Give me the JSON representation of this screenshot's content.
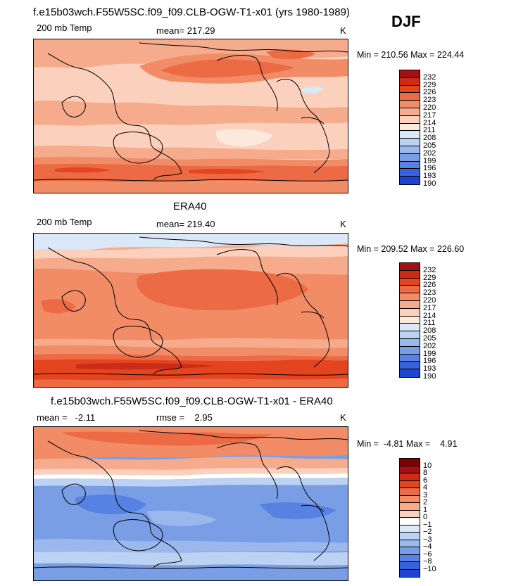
{
  "season": "DJF",
  "palette": {
    "r10": "#7a0403",
    "r9": "#a50f15",
    "r8": "#cb2c17",
    "r7": "#e4451f",
    "r6": "#ec6a44",
    "r5": "#f18c66",
    "r4": "#f5ab8c",
    "r3": "#fbd1bd",
    "r2": "#fde8dc",
    "w": "#ffffff",
    "b1": "#dbe8f8",
    "b2": "#bcd2f2",
    "b3": "#9bb8ec",
    "b4": "#7a9ee6",
    "b5": "#5781e3",
    "b6": "#3762de",
    "b7": "#1d44d3",
    "b8": "#0f2ab3",
    "b9": "#061587"
  },
  "chart_data": [
    {
      "type": "heatmap",
      "title": "f.e15b03wch.F55W5SC.f09_f09.CLB-OGW-T1-x01 (yrs 1980-1989)",
      "field": "200 mb Temp",
      "mean_text": "mean= 217.29",
      "units": "K",
      "minmax": "Min = 210.56 Max = 224.44",
      "levels": [
        "232",
        "229",
        "226",
        "223",
        "220",
        "217",
        "214",
        "211",
        "208",
        "205",
        "202",
        "199",
        "196",
        "193",
        "190"
      ],
      "level_colors": [
        "r9",
        "r8",
        "r7",
        "r6",
        "r5",
        "r4",
        "r3",
        "r2",
        "b1",
        "b2",
        "b3",
        "b4",
        "b5",
        "b6",
        "b7"
      ]
    },
    {
      "type": "heatmap",
      "title": "ERA40",
      "field": "200 mb Temp",
      "mean_text": "mean= 219.40",
      "units": "K",
      "minmax": "Min = 209.52 Max = 226.60",
      "levels": [
        "232",
        "229",
        "226",
        "223",
        "220",
        "217",
        "214",
        "211",
        "208",
        "205",
        "202",
        "199",
        "196",
        "193",
        "190"
      ],
      "level_colors": [
        "r9",
        "r8",
        "r7",
        "r6",
        "r5",
        "r4",
        "r3",
        "r2",
        "b1",
        "b2",
        "b3",
        "b4",
        "b5",
        "b6",
        "b7"
      ]
    },
    {
      "type": "heatmap",
      "title": "f.e15b03wch.F55W5SC.f09_f09.CLB-OGW-T1-x01 - ERA40",
      "mean_text": "mean =   -2.11",
      "rmse_text": "rmse =    2.95",
      "units": "K",
      "minmax": "Min =  -4.81 Max =    4.91",
      "levels": [
        "10",
        "8",
        "6",
        "4",
        "3",
        "2",
        "1",
        "0",
        "−1",
        "−2",
        "−3",
        "−4",
        "−6",
        "−8",
        "−10"
      ],
      "level_colors": [
        "r10",
        "r9",
        "r8",
        "r7",
        "r6",
        "r5",
        "r4",
        "r3",
        "w",
        "b1",
        "b2",
        "b3",
        "b4",
        "b5",
        "b6",
        "b7"
      ]
    }
  ]
}
